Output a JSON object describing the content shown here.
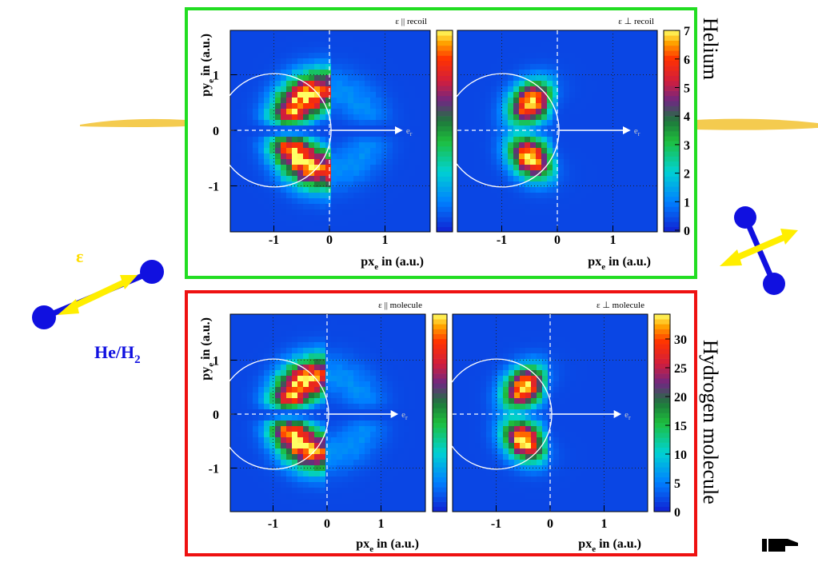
{
  "groups": [
    {
      "name": "Helium",
      "panels": [
        {
          "title": "ε || recoil"
        },
        {
          "title": "ε ⊥ recoil"
        }
      ],
      "colorbar_ticks": [
        "0",
        "1",
        "2",
        "3",
        "4",
        "5",
        "6",
        "7"
      ]
    },
    {
      "name": "Hydrogen molecule",
      "panels": [
        {
          "title": "ε || molecule"
        },
        {
          "title": "ε ⊥ molecule"
        }
      ],
      "colorbar_ticks": [
        "0",
        "5",
        "10",
        "15",
        "20",
        "25",
        "30"
      ]
    }
  ],
  "axis": {
    "x_ticks": [
      "-1",
      "0",
      "1"
    ],
    "y_ticks": [
      "1",
      "0",
      "-1"
    ],
    "xlabel": {
      "main": "px",
      "sub": "e",
      "rest": " in (a.u.)"
    },
    "ylabel": {
      "main": "py",
      "sub": "e",
      "rest": " in (a.u.)"
    }
  },
  "arrow_label": {
    "main": "e",
    "sub": "r"
  },
  "polarization_label": "ε",
  "target_label": {
    "main": "He/H",
    "sub": "2"
  }
}
